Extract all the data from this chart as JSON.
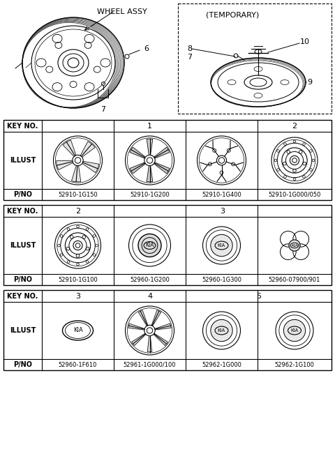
{
  "bg_color": "#ffffff",
  "fig_w": 4.8,
  "fig_h": 6.54,
  "dpi": 100,
  "table1": {
    "part_numbers": [
      "52910-1G150",
      "52910-1G200",
      "52910-1G400",
      "52910-1G000/050"
    ]
  },
  "table2": {
    "part_numbers": [
      "52910-1G100",
      "52960-1G200",
      "52960-1G300",
      "52960-07900/901"
    ]
  },
  "table3": {
    "part_numbers": [
      "52960-1F610",
      "52961-1G000/100",
      "52962-1G000",
      "52962-1G100"
    ]
  }
}
